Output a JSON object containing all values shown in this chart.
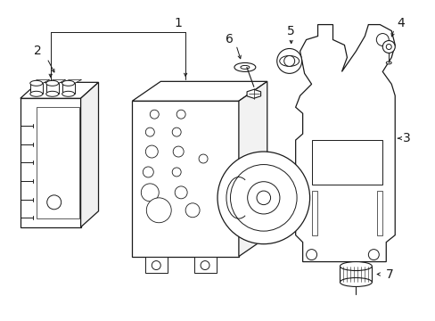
{
  "background_color": "#ffffff",
  "line_color": "#1a1a1a",
  "lw": 0.9,
  "fig_w": 4.89,
  "fig_h": 3.6,
  "dpi": 100
}
